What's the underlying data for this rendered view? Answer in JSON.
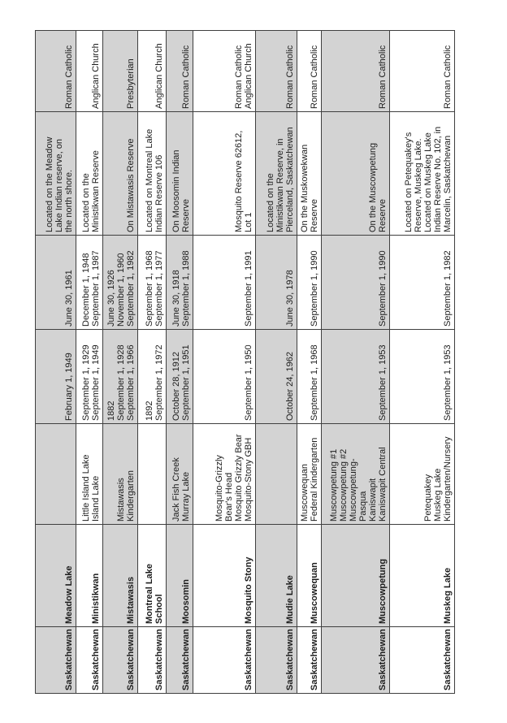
{
  "table_colors": {
    "shaded_row_bg": "#d3d3d3",
    "unshaded_row_bg": "#ffffff",
    "border": "#3f3f3f",
    "text": "#1d1d1d"
  },
  "schools": [
    {
      "province": "Saskatchewan",
      "name": [
        "Meadow Lake"
      ],
      "alternate_names": [],
      "opened": [
        "February 1, 1949"
      ],
      "closed": [
        "June 30, 1961"
      ],
      "location": [
        "Located on the Meadow",
        "Lake Indian reserve, on",
        "the north shore."
      ],
      "religion": [
        "Roman Catholic"
      ]
    },
    {
      "province": "Saskatchewan",
      "name": [
        "Ministikwan"
      ],
      "alternate_names": [
        "Little Island Lake",
        "Island Lake"
      ],
      "opened": [
        "September 1, 1929",
        "September 1, 1949"
      ],
      "closed": [
        "December 1, 1948",
        "September 1, 1987"
      ],
      "location": [
        "Located on the",
        "Ministikwan Reserve"
      ],
      "religion": [
        "Anglican Church"
      ]
    },
    {
      "province": "Saskatchewan",
      "name": [
        "Mistawasis"
      ],
      "alternate_names": [
        "Mistawasis",
        "Kindergarten"
      ],
      "opened": [
        "1882",
        "September 1, 1928",
        "September 1, 1966"
      ],
      "closed": [
        "June 30, 1926",
        "November 1, 1960",
        "September 1, 1982"
      ],
      "location": [
        "On Mistawasis Reserve"
      ],
      "religion": [
        "Presbyterian"
      ]
    },
    {
      "province": "Saskatchewan",
      "name": [
        "Montreal Lake",
        "School"
      ],
      "alternate_names": [],
      "opened": [
        "1892",
        "September 1, 1972"
      ],
      "closed": [
        "September 1, 1968",
        "September 1, 1977"
      ],
      "location": [
        "Located on Montreal Lake",
        "Indian Reserve 106"
      ],
      "religion": [
        "Anglican Church"
      ]
    },
    {
      "province": "Saskatchewan",
      "name": [
        "Moosomin"
      ],
      "alternate_names": [
        "Jack Fish Creek",
        "Murray Lake"
      ],
      "opened": [
        "October 28, 1912",
        "September 1, 1951"
      ],
      "closed": [
        "June 30, 1918",
        "September 1, 1988"
      ],
      "location": [
        "On Moosomin Indian",
        "Reserve"
      ],
      "religion": [
        "Roman Catholic"
      ]
    },
    {
      "province": "Saskatchewan",
      "name": [
        "Mosquito Stony"
      ],
      "alternate_names": [
        "Mosquito-Grizzly",
        "Bear's Head",
        "Mosquito Grizzly Bear",
        "Mosquito-Stony GBH"
      ],
      "opened": [
        "September 1, 1950"
      ],
      "closed": [
        "September 1, 1991"
      ],
      "location": [
        "Mosquito Reserve 62612,",
        "Lot 1"
      ],
      "religion": [
        "Roman Catholic",
        "Anglican Church"
      ]
    },
    {
      "province": "Saskatchewan",
      "name": [
        "Mudie Lake"
      ],
      "alternate_names": [],
      "opened": [
        "October 24, 1962"
      ],
      "closed": [
        "June 30, 1978"
      ],
      "location": [
        "Located on the",
        "Ministikwan Reserve, in",
        "Pierceland, Saskatchewan"
      ],
      "religion": [
        "Roman Catholic"
      ]
    },
    {
      "province": "Saskatchewan",
      "name": [
        "Muscowequan"
      ],
      "alternate_names": [
        "Muscowequan",
        "Federal Kindergarten"
      ],
      "opened": [
        "September 1, 1968"
      ],
      "closed": [
        "September 1, 1990"
      ],
      "location": [
        "On the Muskowekwan",
        "Reserve"
      ],
      "religion": [
        "Roman Catholic"
      ]
    },
    {
      "province": "Saskatchewan",
      "name": [
        "Muscowpetung"
      ],
      "alternate_names": [
        "Muscowpetung #1",
        "Muscowpetung #2",
        "Muscowpetung-",
        "Pasqua",
        "Kaniswapit",
        "Kaniswapit Central"
      ],
      "opened": [
        "September 1, 1953"
      ],
      "closed": [
        "September 1, 1990"
      ],
      "location": [
        "On the Muscowpetung",
        "Reserve"
      ],
      "religion": [
        "Roman Catholic"
      ]
    },
    {
      "province": "Saskatchewan",
      "name": [
        "Muskeg Lake"
      ],
      "alternate_names": [
        "Petequakey",
        "Muskeg Lake",
        "Kindergarten/Nursery"
      ],
      "opened": [
        "September 1, 1953"
      ],
      "closed": [
        "September 1, 1982"
      ],
      "location": [
        "Located on Petequakey's",
        "Reserve, Muskeg Lake.",
        "Located on Muskeg Lake",
        "Indian Reserve No. 102, in",
        "Marcelin, Saskatchewan"
      ],
      "religion": [
        "Roman Catholic"
      ]
    }
  ]
}
